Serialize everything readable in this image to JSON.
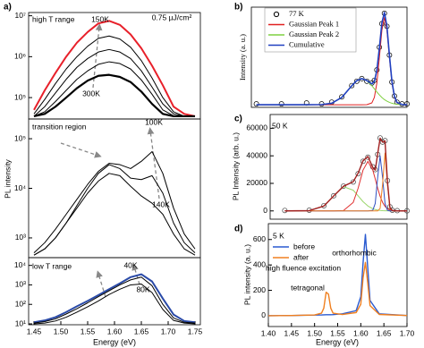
{
  "chart_data": [
    {
      "type": "line",
      "label": "a)",
      "log": true,
      "x": [
        1.45,
        1.47,
        1.49,
        1.51,
        1.53,
        1.55,
        1.57,
        1.59,
        1.61,
        1.63,
        1.65,
        1.67,
        1.69,
        1.71,
        1.73,
        1.75
      ],
      "xlim": [
        1.44,
        1.76
      ],
      "ylim": [
        30000,
        12000000
      ],
      "yticks": [
        {
          "value": 100000,
          "label": "10⁵"
        },
        {
          "value": 1000000,
          "label": "10⁶"
        },
        {
          "value": 10000000,
          "label": "10⁷"
        }
      ],
      "annotations": [
        "high T range",
        "150K",
        "0.75 µJ/cm²",
        "300K"
      ],
      "series": [
        {
          "color": "#e8202a",
          "linewidth": 2,
          "values": [
            50000,
            150000,
            400000,
            1000000,
            2200000,
            4000000,
            6500000,
            7500000,
            6000000,
            3500000,
            1600000,
            600000,
            200000,
            60000,
            40000,
            35000
          ]
        },
        {
          "color": "#000000",
          "linewidth": 1,
          "values": [
            40000,
            90000,
            220000,
            500000,
            1000000,
            1800000,
            2800000,
            3200000,
            2700000,
            1700000,
            800000,
            300000,
            100000,
            45000,
            35000,
            35000
          ]
        },
        {
          "color": "#000000",
          "linewidth": 1,
          "values": [
            35000,
            60000,
            130000,
            280000,
            550000,
            900000,
            1300000,
            1500000,
            1300000,
            900000,
            450000,
            180000,
            70000,
            40000,
            35000,
            35000
          ]
        },
        {
          "color": "#000000",
          "linewidth": 1,
          "values": [
            35000,
            45000,
            80000,
            150000,
            280000,
            450000,
            650000,
            750000,
            680000,
            500000,
            270000,
            120000,
            50000,
            36000,
            35000,
            35000
          ]
        },
        {
          "color": "#000000",
          "linewidth": 2.2,
          "values": [
            35000,
            40000,
            60000,
            100000,
            170000,
            260000,
            340000,
            360000,
            320000,
            240000,
            140000,
            70000,
            40000,
            35000,
            35000,
            35000
          ]
        }
      ]
    },
    {
      "type": "line",
      "log": true,
      "ylabel": "PL intensity",
      "x": [
        1.45,
        1.47,
        1.49,
        1.51,
        1.53,
        1.55,
        1.57,
        1.59,
        1.61,
        1.63,
        1.65,
        1.67,
        1.69,
        1.71,
        1.73,
        1.75
      ],
      "xlim": [
        1.44,
        1.76
      ],
      "ylim": [
        400,
        250000
      ],
      "yticks": [
        {
          "value": 1000,
          "label": "10³"
        },
        {
          "value": 10000,
          "label": "10⁴"
        },
        {
          "value": 100000,
          "label": "10⁵"
        }
      ],
      "annotations": [
        "transition region",
        "100K",
        "140K"
      ],
      "series": [
        {
          "color": "#000000",
          "linewidth": 1,
          "values": [
            500,
            800,
            1500,
            3000,
            6000,
            12000,
            22000,
            32000,
            30000,
            25000,
            35000,
            55000,
            20000,
            4000,
            1200,
            600
          ]
        },
        {
          "color": "#000000",
          "linewidth": 1,
          "values": [
            450,
            600,
            1000,
            2000,
            4500,
            10000,
            20000,
            30000,
            25000,
            16000,
            15000,
            18000,
            8000,
            2000,
            800,
            500
          ]
        },
        {
          "color": "#000000",
          "linewidth": 1,
          "values": [
            450,
            600,
            1000,
            2000,
            4000,
            8000,
            14000,
            20000,
            18000,
            11000,
            7000,
            5000,
            3000,
            1200,
            600,
            450
          ]
        }
      ]
    },
    {
      "type": "line",
      "log": true,
      "xlabel": "Energy (eV)",
      "x": [
        1.45,
        1.47,
        1.49,
        1.51,
        1.53,
        1.55,
        1.57,
        1.59,
        1.61,
        1.63,
        1.65,
        1.67,
        1.69,
        1.71,
        1.73,
        1.75
      ],
      "xlim": [
        1.44,
        1.76
      ],
      "ylim": [
        9,
        25000
      ],
      "xticks": [
        1.45,
        {
          "value": 1.5,
          "label": "1.50"
        },
        1.55,
        {
          "value": 1.6,
          "label": "1.60"
        },
        1.65,
        {
          "value": 1.7,
          "label": "1.70"
        },
        1.75
      ],
      "yticks": [
        {
          "value": 10,
          "label": "10¹"
        },
        {
          "value": 100,
          "label": "10²"
        },
        {
          "value": 1000,
          "label": "10³"
        },
        {
          "value": 10000,
          "label": "10⁴"
        }
      ],
      "annotations": [
        "low T range",
        "40K",
        "80K"
      ],
      "series": [
        {
          "color": "#2a4aa8",
          "linewidth": 2,
          "values": [
            12,
            15,
            22,
            40,
            80,
            150,
            300,
            600,
            1200,
            2500,
            3500,
            1500,
            200,
            30,
            14,
            12
          ]
        },
        {
          "color": "#000000",
          "linewidth": 1,
          "values": [
            11,
            13,
            18,
            32,
            60,
            120,
            250,
            500,
            1000,
            1800,
            2500,
            900,
            100,
            20,
            12,
            11
          ]
        },
        {
          "color": "#000000",
          "linewidth": 1,
          "values": [
            10,
            11,
            14,
            22,
            40,
            75,
            150,
            320,
            600,
            1000,
            1100,
            400,
            55,
            15,
            11,
            10
          ]
        }
      ]
    },
    {
      "type": "line",
      "label": "b)",
      "ylabel": "Intensity (a. u.)",
      "x": [
        1.4,
        1.45,
        1.5,
        1.53,
        1.55,
        1.57,
        1.59,
        1.6,
        1.61,
        1.62,
        1.63,
        1.635,
        1.64,
        1.645,
        1.65,
        1.655,
        1.66,
        1.665,
        1.67,
        1.675,
        1.68,
        1.69,
        1.7
      ],
      "xlim": [
        1.39,
        1.7
      ],
      "ylim": [
        -0.03,
        1.12
      ],
      "series": [
        {
          "name": "77 K",
          "marker": "circle",
          "color": "#000000",
          "values": [
            0.01,
            0.01,
            0.02,
            0.01,
            0.03,
            0.09,
            0.22,
            0.27,
            0.3,
            0.27,
            0.25,
            0.28,
            0.4,
            0.66,
            0.93,
            1.05,
            0.9,
            0.57,
            0.26,
            0.1,
            0.03,
            0.01,
            0.01
          ]
        },
        {
          "name": "Gaussian Peak 1",
          "color": "#e02020",
          "linewidth": 1,
          "values": [
            0,
            0,
            0,
            0,
            0,
            0,
            0,
            0,
            0,
            0.001,
            0.021,
            0.085,
            0.25,
            0.54,
            0.857,
            1,
            0.857,
            0.54,
            0.25,
            0.085,
            0.021,
            0.001,
            0
          ]
        },
        {
          "name": "Gaussian Peak 2",
          "color": "#7fd040",
          "linewidth": 1,
          "values": [
            0,
            0,
            0,
            0.002,
            0.017,
            0.083,
            0.218,
            0.277,
            0.3,
            0.277,
            0.218,
            0.182,
            0.146,
            0.113,
            0.083,
            0.059,
            0.041,
            0.027,
            0.017,
            0.01,
            0.006,
            0.002,
            0.001
          ]
        },
        {
          "name": "Cumulative",
          "color": "#2040c0",
          "linewidth": 1.6,
          "values": [
            0,
            0,
            0,
            0.002,
            0.017,
            0.083,
            0.218,
            0.277,
            0.3,
            0.278,
            0.239,
            0.267,
            0.396,
            0.653,
            0.94,
            1.059,
            0.898,
            0.567,
            0.267,
            0.095,
            0.027,
            0.003,
            0.001
          ]
        }
      ]
    },
    {
      "type": "line",
      "label": "c)",
      "ylabel": "PL Intensity (arb. u.)",
      "x": [
        1.45,
        1.5,
        1.53,
        1.55,
        1.57,
        1.59,
        1.6,
        1.61,
        1.62,
        1.63,
        1.635,
        1.64,
        1.645,
        1.65,
        1.655,
        1.66,
        1.665,
        1.67,
        1.68,
        1.7
      ],
      "xlim": [
        1.42,
        1.7
      ],
      "ylim": [
        -6000,
        70000
      ],
      "yticks": [
        0,
        20000,
        40000,
        60000
      ],
      "annotations": [
        "50 K"
      ],
      "series": [
        {
          "marker": "circle",
          "color": "#444444",
          "values": [
            300,
            500,
            3800,
            11000,
            18000,
            21000,
            27000,
            36000,
            39000,
            32000,
            30000,
            41000,
            53000,
            50000,
            51000,
            22000,
            3000,
            500,
            200,
            100
          ]
        },
        {
          "color": "#9ad66b",
          "linewidth": 1,
          "values": [
            0,
            200,
            3560,
            10900,
            17640,
            15030,
            10900,
            6750,
            3560,
            1600,
            1010,
            610,
            360,
            200,
            110,
            60,
            30,
            15,
            0,
            0
          ]
        },
        {
          "color": "#e03030",
          "linewidth": 1,
          "values": [
            0,
            0,
            0,
            0,
            270,
            6200,
            16500,
            29600,
            36000,
            29600,
            23200,
            16500,
            10600,
            6200,
            3300,
            1580,
            690,
            270,
            30,
            0
          ]
        },
        {
          "color": "#3050c0",
          "linewidth": 1,
          "values": [
            0,
            0,
            0,
            0,
            0,
            0,
            0,
            0,
            0,
            440,
            5400,
            24300,
            40000,
            24300,
            5400,
            440,
            0,
            0,
            0,
            0
          ]
        },
        {
          "color": "#f08020",
          "linewidth": 1,
          "values": [
            0,
            0,
            0,
            0,
            0,
            0,
            0,
            0,
            0,
            0,
            0,
            0,
            1840,
            19200,
            42000,
            19200,
            1840,
            40,
            0,
            0
          ]
        },
        {
          "color": "#a02020",
          "linewidth": 1.4,
          "values": [
            0,
            200,
            3560,
            10900,
            17910,
            21230,
            27400,
            36350,
            39560,
            31640,
            29610,
            41410,
            52800,
            49900,
            50810,
            21280,
            2560,
            325,
            30,
            0
          ]
        }
      ]
    },
    {
      "type": "line",
      "label": "d)",
      "ylabel": "PL intensity (a. u.)",
      "xlabel": "Energy (eV)",
      "legend_title": "5 K",
      "x": [
        1.4,
        1.45,
        1.5,
        1.515,
        1.52,
        1.525,
        1.53,
        1.535,
        1.54,
        1.56,
        1.59,
        1.6,
        1.605,
        1.61,
        1.615,
        1.62,
        1.64,
        1.7
      ],
      "xlim": [
        1.4,
        1.7
      ],
      "ylim": [
        -85,
        725
      ],
      "xticks": [
        {
          "value": 1.4,
          "label": "1.40"
        },
        1.45,
        {
          "value": 1.5,
          "label": "1.50"
        },
        1.55,
        {
          "value": 1.6,
          "label": "1.60"
        },
        1.65,
        {
          "value": 1.7,
          "label": "1.70"
        }
      ],
      "yticks": [
        0,
        200,
        400,
        600
      ],
      "annotations": [
        "orthorhombic",
        "tetragonal",
        "high fluence excitation"
      ],
      "series": [
        {
          "name": "before",
          "color": "#2a5ad0",
          "linewidth": 1.4,
          "values": [
            0,
            2,
            5,
            6,
            7,
            8,
            8,
            8,
            9,
            15,
            40,
            150,
            420,
            640,
            380,
            120,
            15,
            2
          ]
        },
        {
          "name": "after",
          "color": "#f08020",
          "linewidth": 1.4,
          "values": [
            0,
            2,
            6,
            20,
            60,
            185,
            170,
            60,
            20,
            10,
            25,
            90,
            300,
            420,
            260,
            80,
            10,
            2
          ]
        }
      ]
    }
  ]
}
